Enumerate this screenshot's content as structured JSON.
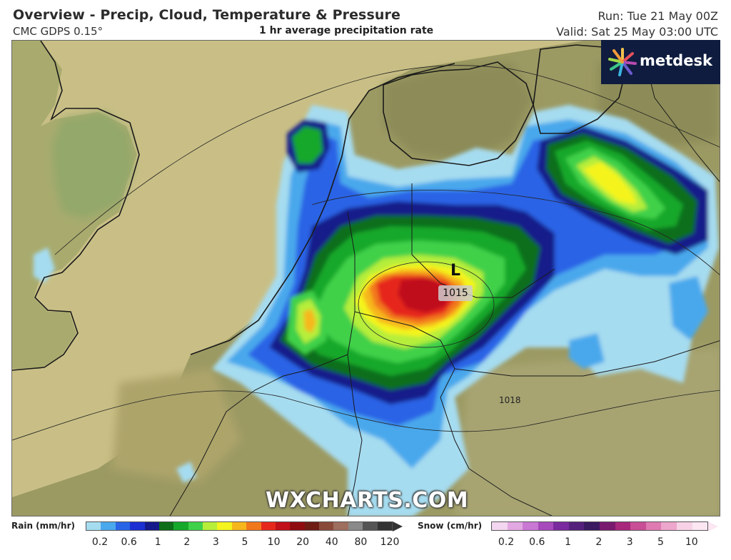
{
  "header": {
    "title": "Overview - Precip, Cloud, Temperature & Pressure",
    "model": "CMC GDPS 0.15°",
    "subtitle": "1 hr average precipitation rate",
    "run": "Run: Tue 21 May 00Z",
    "valid": "Valid: Sat 25 May 03:00 UTC"
  },
  "logo": {
    "text": "metdesk",
    "icon": "flower-burst-icon"
  },
  "watermark": "WXCHARTS.COM",
  "map": {
    "low_center": {
      "symbol": "L",
      "pressure": "1015"
    },
    "isobar_label": "1018"
  },
  "legend": {
    "rain": {
      "title": "Rain (mm/hr)",
      "ticks": [
        "0.2",
        "0.6",
        "1",
        "2",
        "3",
        "5",
        "10",
        "20",
        "40",
        "80",
        "120"
      ],
      "colors": [
        "#a6dcf0",
        "#4aa8ec",
        "#2a64e6",
        "#1c2fd2",
        "#141a8a",
        "#0e6e1a",
        "#16a82a",
        "#3fd14a",
        "#b6ee3a",
        "#f4f41e",
        "#f6b71c",
        "#f2781c",
        "#e6281c",
        "#c0101a",
        "#8e0c10",
        "#6e1c14",
        "#8a4a3a",
        "#9e6e5e",
        "#8a8a8a",
        "#555555",
        "#333333"
      ]
    },
    "snow": {
      "title": "Snow (cm/hr)",
      "ticks": [
        "0.2",
        "0.6",
        "1",
        "2",
        "3",
        "5",
        "10"
      ],
      "colors": [
        "#f3d6f0",
        "#e2a8e2",
        "#c978d4",
        "#a74abc",
        "#7a2a9e",
        "#55207c",
        "#3a1a60",
        "#7a1a6e",
        "#a8287c",
        "#c84e96",
        "#df7ab2",
        "#eda6cc",
        "#f7d2e6",
        "#fbe6f1"
      ]
    }
  }
}
